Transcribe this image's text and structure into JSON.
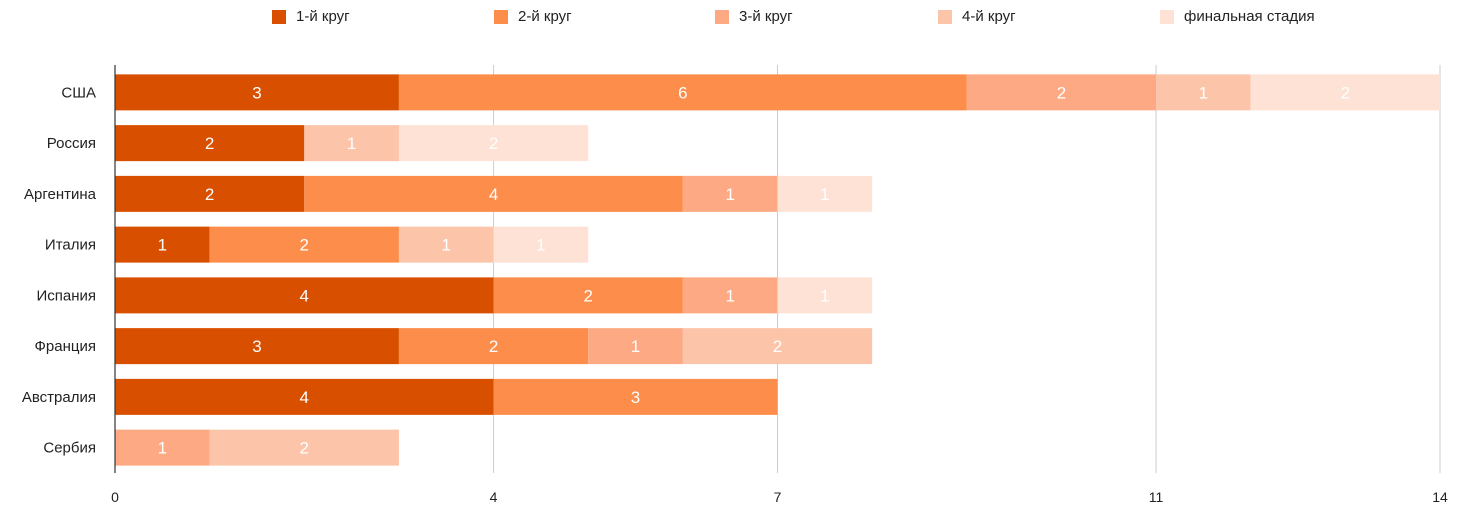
{
  "chart_data": {
    "type": "bar",
    "orientation": "horizontal",
    "stacked": true,
    "categories": [
      "США",
      "Россия",
      "Аргентина",
      "Италия",
      "Испания",
      "Франция",
      "Австралия",
      "Сербия"
    ],
    "series": [
      {
        "name": "1-й круг",
        "color": "#d94f00",
        "values": [
          3,
          2,
          2,
          1,
          4,
          3,
          4,
          0
        ]
      },
      {
        "name": "2-й круг",
        "color": "#fd8d4a",
        "values": [
          6,
          0,
          4,
          2,
          2,
          2,
          3,
          0
        ]
      },
      {
        "name": "3-й круг",
        "color": "#fdaa84",
        "values": [
          2,
          0,
          1,
          0,
          1,
          1,
          0,
          1
        ]
      },
      {
        "name": "4-й круг",
        "color": "#fcc5aa",
        "values": [
          1,
          1,
          0,
          1,
          0,
          2,
          0,
          2
        ]
      },
      {
        "name": "финальная стадия",
        "color": "#fee2d5",
        "values": [
          2,
          2,
          1,
          1,
          1,
          0,
          0,
          0
        ]
      }
    ],
    "xlim": [
      0,
      14
    ],
    "xticks": [
      "0",
      "4",
      "7",
      "11",
      "14"
    ],
    "grid": true,
    "legend_position": "top",
    "title": "",
    "xlabel": "",
    "ylabel": ""
  }
}
